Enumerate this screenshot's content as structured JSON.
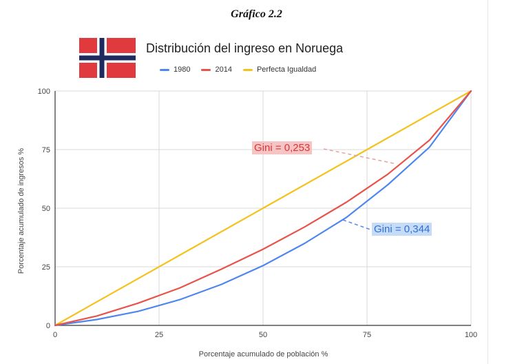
{
  "figure_caption": "Gráfico 2.2",
  "flag_icon": "norway-flag-icon",
  "colors": {
    "series_1980": "#4e86ef",
    "series_2014": "#e8524a",
    "series_equality": "#f4c21b",
    "grid": "#d9d9d9",
    "flag_red": "#e03a3e",
    "flag_blue": "#1f2b5e"
  },
  "chart_data": {
    "type": "line",
    "title": "Distribución del ingreso en Noruega",
    "xlabel": "Porcentaje acumulado de población %",
    "ylabel": "Porcentaje acumulado de ingresos %",
    "xlim": [
      0,
      100
    ],
    "ylim": [
      0,
      100
    ],
    "xticks": [
      0,
      25,
      50,
      75,
      100
    ],
    "yticks": [
      0,
      25,
      50,
      75,
      100
    ],
    "grid": true,
    "legend_position": "top",
    "series": [
      {
        "name": "1980",
        "x": [
          0,
          10,
          20,
          30,
          40,
          50,
          60,
          70,
          80,
          90,
          100
        ],
        "y": [
          0,
          2.5,
          6,
          11,
          17.5,
          25.5,
          35,
          46,
          60,
          76,
          100
        ]
      },
      {
        "name": "2014",
        "x": [
          0,
          10,
          20,
          30,
          40,
          50,
          60,
          70,
          80,
          90,
          100
        ],
        "y": [
          0,
          4,
          9.5,
          16,
          24,
          32.5,
          42,
          52.5,
          64.5,
          79,
          100
        ]
      },
      {
        "name": "Perfecta Igualdad",
        "x": [
          0,
          100
        ],
        "y": [
          0,
          100
        ]
      }
    ],
    "annotations": [
      {
        "text": "Gini = 0,253",
        "series": "2014"
      },
      {
        "text": "Gini = 0,344",
        "series": "1980"
      }
    ]
  }
}
